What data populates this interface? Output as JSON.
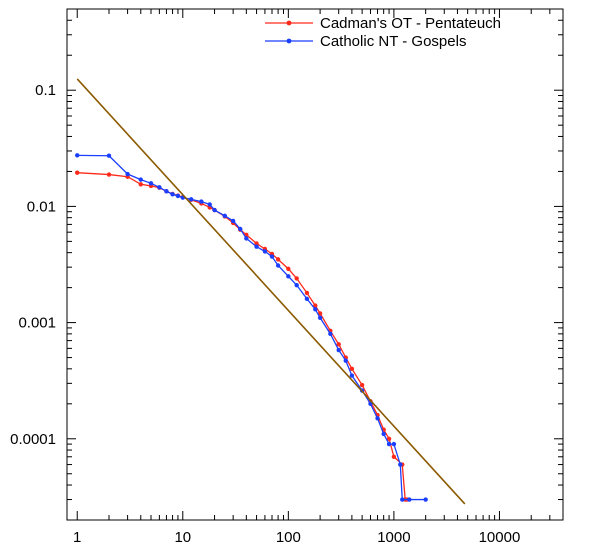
{
  "chart_data": {
    "type": "line",
    "title": "",
    "xlabel": "",
    "ylabel": "",
    "x_scale": "log",
    "y_scale": "log",
    "xlim": [
      0.8,
      40000
    ],
    "ylim": [
      2e-05,
      0.5
    ],
    "x_ticks": [
      {
        "value": 1,
        "label": "1"
      },
      {
        "value": 10,
        "label": "10"
      },
      {
        "value": 100,
        "label": "100"
      },
      {
        "value": 1000,
        "label": "1000"
      },
      {
        "value": 10000,
        "label": "10000"
      }
    ],
    "y_ticks": [
      {
        "value": 0.1,
        "label": "0.1"
      },
      {
        "value": 0.01,
        "label": "0.01"
      },
      {
        "value": 0.001,
        "label": "0.001"
      },
      {
        "value": 0.0001,
        "label": "0.0001"
      }
    ],
    "grid": false,
    "legend_position": "top-right",
    "series": [
      {
        "name": "Cadman's OT - Pentateuch",
        "color": "#ff2a1a",
        "marker": "circle",
        "points": [
          [
            1,
            0.0195
          ],
          [
            2,
            0.0188
          ],
          [
            3,
            0.018
          ],
          [
            4,
            0.0155
          ],
          [
            5,
            0.015
          ],
          [
            6,
            0.0145
          ],
          [
            7,
            0.0135
          ],
          [
            8,
            0.0128
          ],
          [
            9,
            0.0124
          ],
          [
            10,
            0.012
          ],
          [
            12,
            0.0114
          ],
          [
            15,
            0.0106
          ],
          [
            18,
            0.0098
          ],
          [
            20,
            0.0093
          ],
          [
            25,
            0.0082
          ],
          [
            30,
            0.0072
          ],
          [
            35,
            0.0063
          ],
          [
            40,
            0.0057
          ],
          [
            50,
            0.0048
          ],
          [
            60,
            0.0043
          ],
          [
            70,
            0.0039
          ],
          [
            80,
            0.0035
          ],
          [
            100,
            0.0029
          ],
          [
            120,
            0.0024
          ],
          [
            150,
            0.0018
          ],
          [
            180,
            0.0014
          ],
          [
            200,
            0.0012
          ],
          [
            250,
            0.00085
          ],
          [
            300,
            0.00065
          ],
          [
            350,
            0.0005
          ],
          [
            400,
            0.0004
          ],
          [
            500,
            0.00029
          ],
          [
            600,
            0.00021
          ],
          [
            700,
            0.00016
          ],
          [
            800,
            0.00012
          ],
          [
            900,
            0.0001
          ],
          [
            1000,
            7e-05
          ],
          [
            1200,
            6e-05
          ],
          [
            1280,
            3e-05
          ],
          [
            1330,
            3e-05
          ]
        ]
      },
      {
        "name": "Catholic NT - Gospels",
        "color": "#1a3fff",
        "marker": "circle",
        "points": [
          [
            1,
            0.0275
          ],
          [
            2,
            0.0273
          ],
          [
            3,
            0.019
          ],
          [
            4,
            0.017
          ],
          [
            5,
            0.0158
          ],
          [
            6,
            0.0146
          ],
          [
            7,
            0.0135
          ],
          [
            8,
            0.0127
          ],
          [
            9,
            0.0123
          ],
          [
            10,
            0.0119
          ],
          [
            12,
            0.0115
          ],
          [
            15,
            0.011
          ],
          [
            18,
            0.0104
          ],
          [
            20,
            0.0093
          ],
          [
            25,
            0.0083
          ],
          [
            30,
            0.0075
          ],
          [
            35,
            0.0064
          ],
          [
            40,
            0.0053
          ],
          [
            50,
            0.0045
          ],
          [
            60,
            0.0041
          ],
          [
            70,
            0.0037
          ],
          [
            80,
            0.0031
          ],
          [
            100,
            0.0025
          ],
          [
            120,
            0.0021
          ],
          [
            150,
            0.0016
          ],
          [
            180,
            0.0013
          ],
          [
            200,
            0.0011
          ],
          [
            250,
            0.0008
          ],
          [
            300,
            0.00058
          ],
          [
            350,
            0.00047
          ],
          [
            400,
            0.00035
          ],
          [
            500,
            0.00026
          ],
          [
            600,
            0.0002
          ],
          [
            700,
            0.00015
          ],
          [
            800,
            0.00011
          ],
          [
            900,
            9e-05
          ],
          [
            1000,
            9e-05
          ],
          [
            1150,
            6e-05
          ],
          [
            1200,
            3e-05
          ],
          [
            1400,
            3e-05
          ],
          [
            2000,
            3e-05
          ]
        ]
      },
      {
        "name": "",
        "color": "#8b5a00",
        "marker": "none",
        "points": [
          [
            1,
            0.125
          ],
          [
            4700,
            2.75e-05
          ]
        ]
      }
    ]
  }
}
